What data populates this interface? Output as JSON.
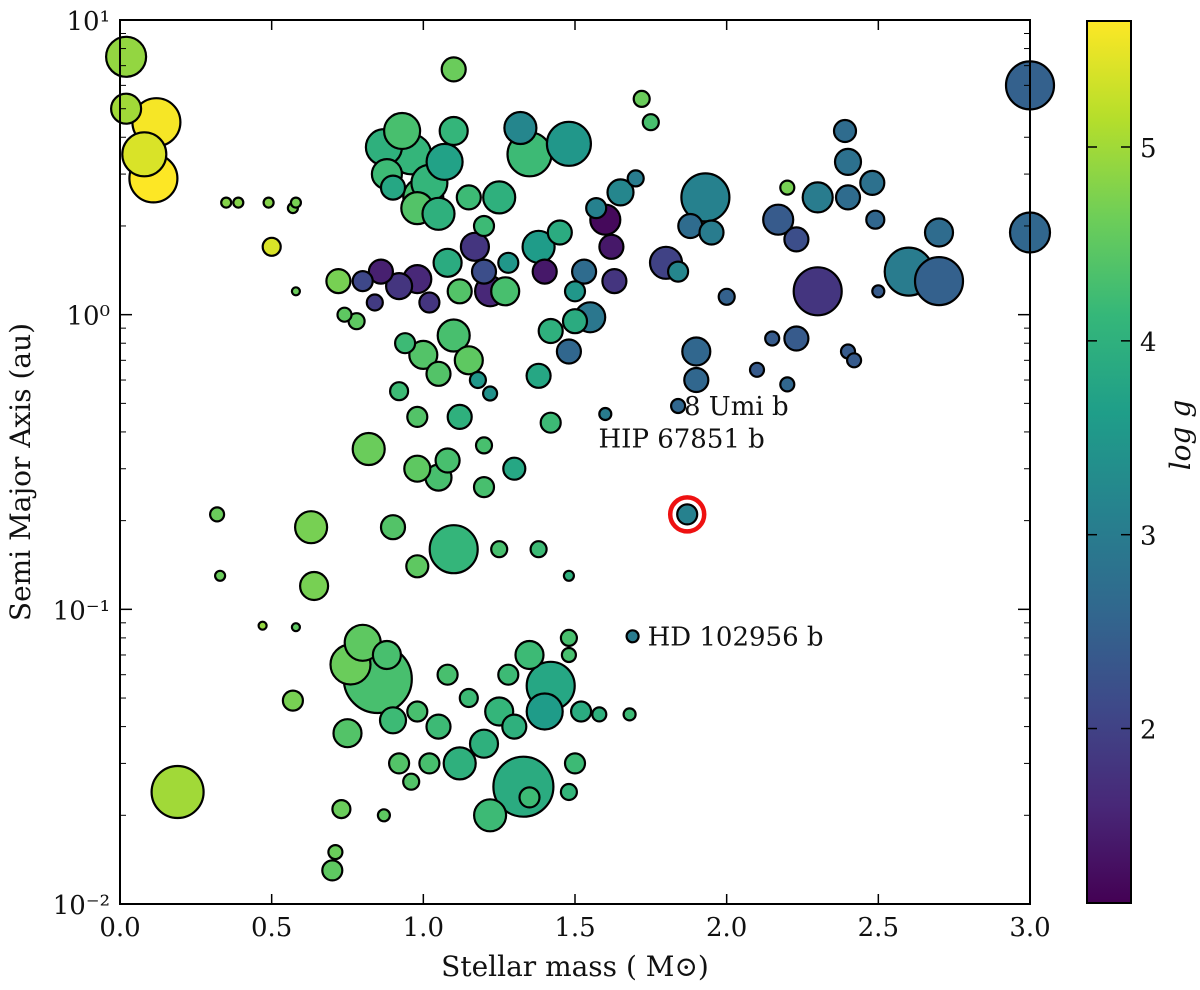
{
  "chart_data": {
    "type": "scatter",
    "title": "",
    "xlabel": "Stellar mass ( M⊙)",
    "ylabel": "Semi Major Axis (au)",
    "xscale": "linear",
    "yscale": "log",
    "xlim": [
      0.0,
      3.0
    ],
    "ylim": [
      0.01,
      10
    ],
    "xticks": [
      0.0,
      0.5,
      1.0,
      1.5,
      2.0,
      2.5,
      3.0
    ],
    "xtick_labels": [
      "0.0",
      "0.5",
      "1.0",
      "1.5",
      "2.0",
      "2.5",
      "3.0"
    ],
    "yticks": [
      0.01,
      0.1,
      1,
      10
    ],
    "ytick_labels": [
      "10⁻²",
      "10⁻¹",
      "10⁰",
      "10¹"
    ],
    "colorbar": {
      "label": "log g",
      "range": [
        1.1,
        5.65
      ],
      "ticks": [
        2,
        3,
        4,
        5
      ],
      "tick_labels": [
        "2",
        "3",
        "4",
        "5"
      ],
      "colormap": "viridis",
      "stops": [
        "#440154",
        "#482878",
        "#3e4989",
        "#31688e",
        "#26828e",
        "#1f9e89",
        "#35b779",
        "#6ece58",
        "#b5de2b",
        "#fde725"
      ]
    },
    "size_encoding": "marker area proportional to stellar radius",
    "highlight_ring_color": "#ee1111",
    "highlight": {
      "x": 1.87,
      "y": 0.21
    },
    "annotations": [
      {
        "text": "8 Umi b",
        "x": 1.8,
        "y": 0.49
      },
      {
        "text": "HIP 67851 b",
        "x": 1.65,
        "y": 0.38
      },
      {
        "text": "HD 102956 b",
        "x": 1.68,
        "y": 0.081
      }
    ],
    "points": [
      [
        0.02,
        7.5,
        4.9,
        20
      ],
      [
        0.02,
        5.0,
        5.0,
        15
      ],
      [
        0.08,
        3.5,
        5.4,
        22
      ],
      [
        0.12,
        4.5,
        5.6,
        24
      ],
      [
        0.11,
        2.9,
        5.7,
        24
      ],
      [
        0.19,
        0.024,
        5.0,
        26
      ],
      [
        0.35,
        2.4,
        4.8,
        5
      ],
      [
        0.39,
        2.4,
        4.8,
        5
      ],
      [
        0.49,
        2.4,
        4.8,
        5
      ],
      [
        0.5,
        1.7,
        5.4,
        9
      ],
      [
        0.57,
        2.3,
        4.7,
        5
      ],
      [
        0.58,
        2.4,
        4.7,
        5
      ],
      [
        0.58,
        1.2,
        4.6,
        4
      ],
      [
        0.32,
        0.21,
        4.6,
        7
      ],
      [
        0.33,
        0.13,
        4.6,
        5
      ],
      [
        0.47,
        0.088,
        4.9,
        4
      ],
      [
        0.57,
        0.049,
        4.7,
        10
      ],
      [
        0.63,
        0.19,
        4.7,
        16
      ],
      [
        0.64,
        0.12,
        4.7,
        14
      ],
      [
        0.58,
        0.087,
        4.5,
        4
      ],
      [
        0.72,
        1.3,
        4.7,
        12
      ],
      [
        0.74,
        1.0,
        4.5,
        7
      ],
      [
        0.78,
        0.95,
        4.5,
        8
      ],
      [
        0.8,
        1.3,
        2.1,
        10
      ],
      [
        0.84,
        1.1,
        1.9,
        8
      ],
      [
        0.87,
        3.7,
        4.0,
        18
      ],
      [
        0.88,
        3.0,
        4.2,
        15
      ],
      [
        0.9,
        2.7,
        3.8,
        12
      ],
      [
        0.93,
        4.2,
        4.3,
        18
      ],
      [
        0.96,
        3.5,
        4.1,
        20
      ],
      [
        0.98,
        2.3,
        4.4,
        16
      ],
      [
        1.0,
        2.5,
        4.3,
        20
      ],
      [
        1.02,
        2.8,
        4.1,
        18
      ],
      [
        1.05,
        2.2,
        4.0,
        16
      ],
      [
        1.07,
        3.3,
        3.7,
        18
      ],
      [
        1.1,
        4.2,
        4.1,
        14
      ],
      [
        1.1,
        6.8,
        4.6,
        12
      ],
      [
        1.15,
        2.5,
        4.2,
        12
      ],
      [
        1.17,
        1.7,
        1.8,
        14
      ],
      [
        1.2,
        1.4,
        2.2,
        12
      ],
      [
        1.22,
        1.2,
        1.6,
        15
      ],
      [
        1.2,
        2.0,
        4.2,
        10
      ],
      [
        1.25,
        2.5,
        4.0,
        16
      ],
      [
        1.27,
        1.2,
        4.3,
        14
      ],
      [
        1.28,
        1.5,
        3.5,
        10
      ],
      [
        1.32,
        4.3,
        3.2,
        16
      ],
      [
        1.35,
        3.5,
        4.2,
        22
      ],
      [
        1.38,
        1.7,
        3.6,
        16
      ],
      [
        1.4,
        1.4,
        1.4,
        12
      ],
      [
        1.45,
        1.9,
        3.9,
        12
      ],
      [
        1.48,
        3.8,
        3.5,
        22
      ],
      [
        1.5,
        1.2,
        3.5,
        10
      ],
      [
        1.53,
        1.4,
        2.7,
        12
      ],
      [
        1.57,
        2.3,
        3.1,
        10
      ],
      [
        1.6,
        2.1,
        1.2,
        15
      ],
      [
        1.62,
        1.7,
        1.4,
        12
      ],
      [
        1.63,
        1.3,
        1.8,
        12
      ],
      [
        1.65,
        2.6,
        3.2,
        13
      ],
      [
        1.7,
        2.9,
        3.0,
        8
      ],
      [
        1.72,
        5.4,
        4.6,
        8
      ],
      [
        1.75,
        4.5,
        4.3,
        8
      ],
      [
        1.8,
        1.5,
        2.0,
        16
      ],
      [
        1.84,
        1.4,
        3.2,
        10
      ],
      [
        1.88,
        2.0,
        2.7,
        12
      ],
      [
        1.9,
        0.75,
        2.6,
        14
      ],
      [
        1.9,
        0.6,
        2.6,
        12
      ],
      [
        1.93,
        2.5,
        3.1,
        24
      ],
      [
        1.95,
        1.9,
        3.0,
        12
      ],
      [
        2.0,
        1.15,
        2.5,
        8
      ],
      [
        2.1,
        0.65,
        2.4,
        7
      ],
      [
        2.15,
        0.83,
        2.4,
        7
      ],
      [
        2.17,
        2.1,
        2.4,
        15
      ],
      [
        2.2,
        2.7,
        4.7,
        7
      ],
      [
        2.2,
        0.58,
        2.6,
        7
      ],
      [
        2.23,
        1.8,
        2.2,
        12
      ],
      [
        2.23,
        0.83,
        2.4,
        12
      ],
      [
        2.3,
        1.2,
        1.8,
        24
      ],
      [
        2.3,
        2.5,
        3.0,
        15
      ],
      [
        2.39,
        4.2,
        2.7,
        11
      ],
      [
        2.4,
        3.3,
        2.8,
        13
      ],
      [
        2.4,
        2.5,
        2.7,
        12
      ],
      [
        2.4,
        0.75,
        2.4,
        7
      ],
      [
        2.42,
        0.7,
        2.4,
        7
      ],
      [
        2.48,
        2.8,
        2.8,
        12
      ],
      [
        2.49,
        2.1,
        2.6,
        9
      ],
      [
        2.5,
        1.2,
        2.4,
        6
      ],
      [
        2.6,
        1.4,
        3.0,
        24
      ],
      [
        2.7,
        1.3,
        2.5,
        24
      ],
      [
        2.7,
        1.9,
        2.7,
        14
      ],
      [
        3.0,
        6.0,
        2.5,
        24
      ],
      [
        3.0,
        1.9,
        2.6,
        20
      ],
      [
        1.84,
        0.49,
        2.6,
        7
      ],
      [
        1.6,
        0.46,
        3.0,
        6
      ],
      [
        1.69,
        0.081,
        3.0,
        6
      ],
      [
        1.87,
        0.21,
        3.1,
        10
      ],
      [
        1.42,
        0.43,
        4.2,
        10
      ],
      [
        1.38,
        0.62,
        3.8,
        12
      ],
      [
        1.42,
        0.88,
        4.0,
        12
      ],
      [
        1.48,
        0.75,
        2.6,
        12
      ],
      [
        1.5,
        0.95,
        3.9,
        12
      ],
      [
        1.55,
        0.98,
        2.9,
        15
      ],
      [
        1.3,
        0.3,
        3.8,
        11
      ],
      [
        1.12,
        0.45,
        4.0,
        12
      ],
      [
        1.05,
        0.28,
        4.3,
        13
      ],
      [
        0.98,
        0.45,
        4.4,
        10
      ],
      [
        0.92,
        0.55,
        4.2,
        9
      ],
      [
        0.82,
        0.35,
        4.6,
        16
      ],
      [
        0.9,
        0.19,
        4.4,
        12
      ],
      [
        0.98,
        0.3,
        4.5,
        13
      ],
      [
        1.08,
        0.32,
        4.3,
        12
      ],
      [
        1.1,
        0.16,
        4.1,
        24
      ],
      [
        0.98,
        0.14,
        4.5,
        11
      ],
      [
        1.2,
        0.36,
        4.3,
        8
      ],
      [
        1.2,
        0.26,
        4.3,
        10
      ],
      [
        1.25,
        0.16,
        4.3,
        8
      ],
      [
        1.38,
        0.16,
        4.2,
        8
      ],
      [
        1.48,
        0.13,
        4.0,
        5
      ],
      [
        1.35,
        0.07,
        4.2,
        14
      ],
      [
        1.42,
        0.055,
        3.8,
        24
      ],
      [
        1.4,
        0.045,
        3.6,
        18
      ],
      [
        1.3,
        0.04,
        4.0,
        12
      ],
      [
        1.25,
        0.045,
        4.1,
        14
      ],
      [
        1.33,
        0.025,
        3.9,
        30
      ],
      [
        1.35,
        0.023,
        4.2,
        10
      ],
      [
        1.22,
        0.02,
        4.2,
        16
      ],
      [
        1.12,
        0.03,
        4.0,
        16
      ],
      [
        1.2,
        0.035,
        4.0,
        14
      ],
      [
        1.05,
        0.04,
        4.2,
        12
      ],
      [
        0.98,
        0.045,
        4.3,
        10
      ],
      [
        0.9,
        0.042,
        4.2,
        13
      ],
      [
        0.88,
        0.07,
        4.3,
        14
      ],
      [
        0.85,
        0.058,
        4.3,
        34
      ],
      [
        0.76,
        0.065,
        4.6,
        20
      ],
      [
        0.8,
        0.077,
        4.5,
        18
      ],
      [
        0.75,
        0.038,
        4.4,
        14
      ],
      [
        0.73,
        0.021,
        4.6,
        9
      ],
      [
        0.7,
        0.013,
        4.5,
        10
      ],
      [
        0.71,
        0.015,
        4.6,
        7
      ],
      [
        0.87,
        0.02,
        4.5,
        6
      ],
      [
        0.92,
        0.03,
        4.4,
        10
      ],
      [
        0.96,
        0.026,
        4.4,
        8
      ],
      [
        1.02,
        0.03,
        4.3,
        10
      ],
      [
        1.08,
        0.06,
        4.3,
        10
      ],
      [
        1.15,
        0.05,
        4.2,
        9
      ],
      [
        1.28,
        0.06,
        4.2,
        10
      ],
      [
        1.48,
        0.08,
        4.3,
        8
      ],
      [
        1.48,
        0.07,
        4.3,
        7
      ],
      [
        1.52,
        0.045,
        3.9,
        10
      ],
      [
        1.58,
        0.044,
        4.0,
        7
      ],
      [
        1.5,
        0.03,
        4.2,
        10
      ],
      [
        1.48,
        0.024,
        4.1,
        8
      ],
      [
        1.68,
        0.044,
        4.2,
        6
      ],
      [
        0.94,
        0.8,
        4.2,
        10
      ],
      [
        1.0,
        0.73,
        4.4,
        14
      ],
      [
        1.05,
        0.63,
        4.4,
        12
      ],
      [
        1.1,
        0.85,
        4.3,
        16
      ],
      [
        1.15,
        0.7,
        4.5,
        14
      ],
      [
        1.18,
        0.6,
        3.5,
        8
      ],
      [
        1.22,
        0.54,
        3.4,
        7
      ],
      [
        0.86,
        1.4,
        1.5,
        12
      ],
      [
        0.92,
        1.25,
        1.8,
        13
      ],
      [
        0.98,
        1.32,
        1.6,
        14
      ],
      [
        1.02,
        1.1,
        1.8,
        10
      ],
      [
        1.08,
        1.5,
        3.9,
        14
      ],
      [
        1.12,
        1.2,
        4.4,
        12
      ]
    ]
  }
}
